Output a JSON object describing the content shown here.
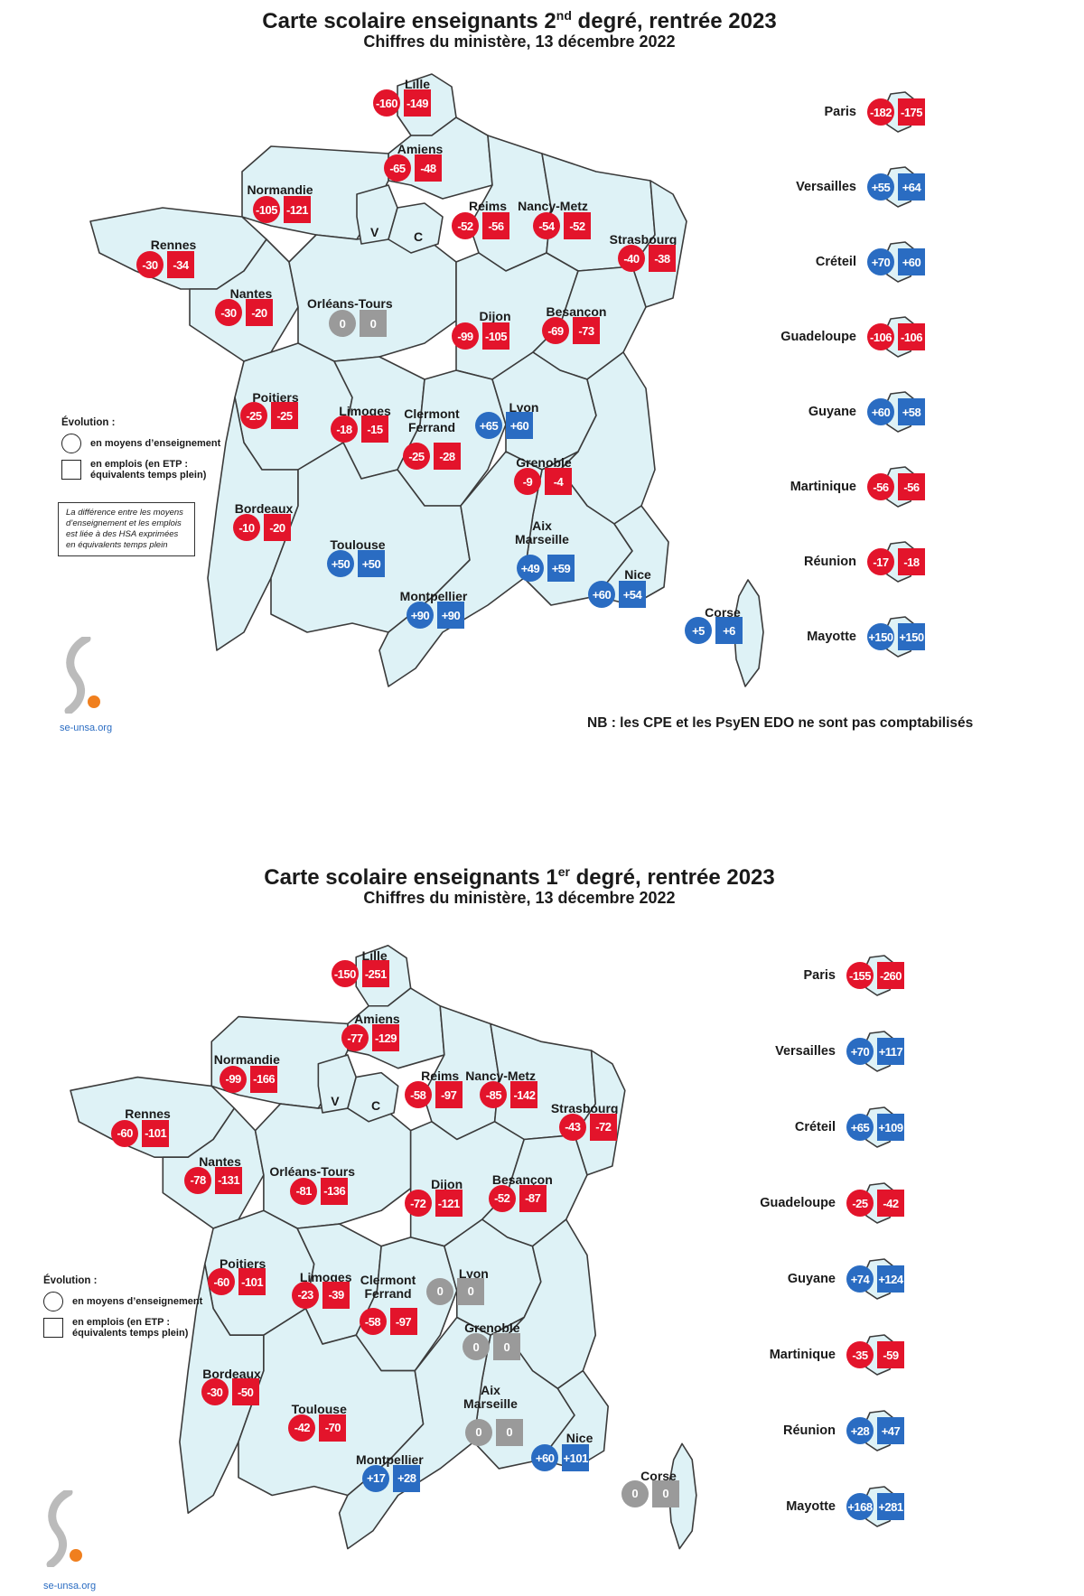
{
  "top": {
    "title_main": "Carte scolaire enseignants 2",
    "title_sup": "nd",
    "title_rest": " degré, rentrée 2023",
    "subtitle": "Chiffres du ministère, 13 décembre 2022",
    "regions": [
      {
        "name": "Lille",
        "a": "-160",
        "b": "-149"
      },
      {
        "name": "Amiens",
        "a": "-65",
        "b": "-48"
      },
      {
        "name": "Normandie",
        "a": "-105",
        "b": "-121"
      },
      {
        "name": "Reims",
        "a": "-52",
        "b": "-56"
      },
      {
        "name": "Nancy-Metz",
        "a": "-54",
        "b": "-52"
      },
      {
        "name": "Strasbourg",
        "a": "-40",
        "b": "-38"
      },
      {
        "name": "Rennes",
        "a": "-30",
        "b": "-34"
      },
      {
        "name": "Nantes",
        "a": "-30",
        "b": "-20"
      },
      {
        "name": "Orléans-Tours",
        "a": "0",
        "b": "0"
      },
      {
        "name": "Dijon",
        "a": "-99",
        "b": "-105"
      },
      {
        "name": "Besançon",
        "a": "-69",
        "b": "-73"
      },
      {
        "name": "Poitiers",
        "a": "-25",
        "b": "-25"
      },
      {
        "name": "Limoges",
        "a": "-18",
        "b": "-15"
      },
      {
        "name": "Clermont\nFerrand",
        "a": "-25",
        "b": "-28"
      },
      {
        "name": "Lyon",
        "a": "+65",
        "b": "+60"
      },
      {
        "name": "Grenoble",
        "a": "-9",
        "b": "-4"
      },
      {
        "name": "Bordeaux",
        "a": "-10",
        "b": "-20"
      },
      {
        "name": "Toulouse",
        "a": "+50",
        "b": "+50"
      },
      {
        "name": "Aix\nMarseille",
        "a": "+49",
        "b": "+59"
      },
      {
        "name": "Nice",
        "a": "+60",
        "b": "+54"
      },
      {
        "name": "Montpellier",
        "a": "+90",
        "b": "+90"
      },
      {
        "name": "Corse",
        "a": "+5",
        "b": "+6"
      }
    ],
    "v_label": "V",
    "c_label": "C",
    "overseas": [
      {
        "name": "Paris",
        "a": "-182",
        "b": "-175"
      },
      {
        "name": "Versailles",
        "a": "+55",
        "b": "+64"
      },
      {
        "name": "Créteil",
        "a": "+70",
        "b": "+60"
      },
      {
        "name": "Guadeloupe",
        "a": "-106",
        "b": "-106"
      },
      {
        "name": "Guyane",
        "a": "+60",
        "b": "+58"
      },
      {
        "name": "Martinique",
        "a": "-56",
        "b": "-56"
      },
      {
        "name": "Réunion",
        "a": "-17",
        "b": "-18"
      },
      {
        "name": "Mayotte",
        "a": "+150",
        "b": "+150"
      }
    ],
    "legend": {
      "title": "Évolution :",
      "circle_label": "en moyens d’enseignement",
      "square_label_1": "en emplois (en ETP :",
      "square_label_2": "équivalents temps plein)"
    },
    "note": "La différence entre les moyens d’enseignement et les emplois est liée à des HSA exprimées en équivalents temps plein",
    "nb": "NB : les CPE et les PsyEN EDO ne sont pas comptabilisés",
    "logo_text": "se-unsa.org"
  },
  "bottom": {
    "title_main": "Carte scolaire enseignants 1",
    "title_sup": "er",
    "title_rest": " degré, rentrée 2023",
    "subtitle": "Chiffres du ministère, 13 décembre 2022",
    "regions": [
      {
        "name": "Lille",
        "a": "-150",
        "b": "-251"
      },
      {
        "name": "Amiens",
        "a": "-77",
        "b": "-129"
      },
      {
        "name": "Normandie",
        "a": "-99",
        "b": "-166"
      },
      {
        "name": "Reims",
        "a": "-58",
        "b": "-97"
      },
      {
        "name": "Nancy-Metz",
        "a": "-85",
        "b": "-142"
      },
      {
        "name": "Strasbourg",
        "a": "-43",
        "b": "-72"
      },
      {
        "name": "Rennes",
        "a": "-60",
        "b": "-101"
      },
      {
        "name": "Nantes",
        "a": "-78",
        "b": "-131"
      },
      {
        "name": "Orléans-Tours",
        "a": "-81",
        "b": "-136"
      },
      {
        "name": "Dijon",
        "a": "-72",
        "b": "-121"
      },
      {
        "name": "Besançon",
        "a": "-52",
        "b": "-87"
      },
      {
        "name": "Poitiers",
        "a": "-60",
        "b": "-101"
      },
      {
        "name": "Limoges",
        "a": "-23",
        "b": "-39"
      },
      {
        "name": "Clermont\nFerrand",
        "a": "-58",
        "b": "-97"
      },
      {
        "name": "Lyon",
        "a": "0",
        "b": "0"
      },
      {
        "name": "Grenoble",
        "a": "0",
        "b": "0"
      },
      {
        "name": "Bordeaux",
        "a": "-30",
        "b": "-50"
      },
      {
        "name": "Toulouse",
        "a": "-42",
        "b": "-70"
      },
      {
        "name": "Aix\nMarseille",
        "a": "0",
        "b": "0"
      },
      {
        "name": "Nice",
        "a": "+60",
        "b": "+101"
      },
      {
        "name": "Montpellier",
        "a": "+17",
        "b": "+28"
      },
      {
        "name": "Corse",
        "a": "0",
        "b": "0"
      }
    ],
    "v_label": "V",
    "c_label": "C",
    "overseas": [
      {
        "name": "Paris",
        "a": "-155",
        "b": "-260"
      },
      {
        "name": "Versailles",
        "a": "+70",
        "b": "+117"
      },
      {
        "name": "Créteil",
        "a": "+65",
        "b": "+109"
      },
      {
        "name": "Guadeloupe",
        "a": "-25",
        "b": "-42"
      },
      {
        "name": "Guyane",
        "a": "+74",
        "b": "+124"
      },
      {
        "name": "Martinique",
        "a": "-35",
        "b": "-59"
      },
      {
        "name": "Réunion",
        "a": "+28",
        "b": "+47"
      },
      {
        "name": "Mayotte",
        "a": "+168",
        "b": "+281"
      }
    ],
    "legend": {
      "title": "Évolution :",
      "circle_label": "en moyens d’enseignement",
      "square_label_1": "en emplois (en ETP :",
      "square_label_2": "équivalents temps plein)"
    },
    "logo_text": "se-unsa.org"
  },
  "colors": {
    "negative": "#e3142b",
    "positive": "#2a6cc2",
    "zero": "#9a9a9a",
    "land": "#def2f6"
  }
}
